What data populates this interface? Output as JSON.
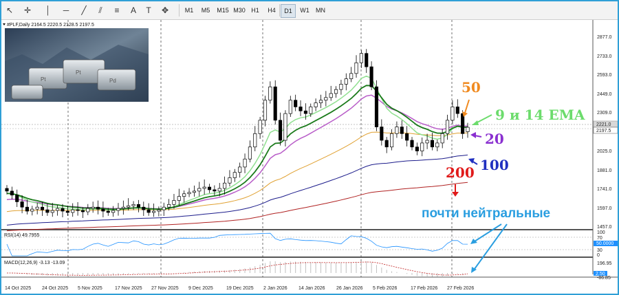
{
  "toolbar": {
    "timeframes": [
      "M1",
      "M5",
      "M15",
      "M30",
      "H1",
      "H4",
      "D1",
      "W1",
      "MN"
    ]
  },
  "header": {
    "symbol_line": "#PLF,Daily  2164.5 2220.5 2128.5 2197.5"
  },
  "price_axis": {
    "labels": [
      "2877.0",
      "2733.0",
      "2593.0",
      "2449.0",
      "2309.0",
      "2169.0",
      "2025.0",
      "1881.0",
      "1741.0",
      "1597.0",
      "1457.0"
    ],
    "current_price": "2197.5",
    "line_price": "2221.0"
  },
  "rsi": {
    "label": "RSI(14) 49.7955",
    "levels": [
      "100",
      "70",
      "30",
      "0"
    ],
    "current": "50.0000"
  },
  "macd": {
    "label": "MACD(12,26,9) -3.13 -13.09",
    "levels": [
      "196.95",
      "-86.85"
    ],
    "current": "2.50"
  },
  "time_axis": {
    "labels": [
      "14 Oct 2025",
      "24 Oct 2025",
      "5 Nov 2025",
      "17 Nov 2025",
      "27 Nov 2025",
      "9 Dec 2025",
      "19 Dec 2025",
      "2 Jan 2026",
      "14 Jan 2026",
      "26 Jan 2026",
      "5 Feb 2026",
      "17 Feb 2026",
      "27 Feb 2026"
    ]
  },
  "annotations": {
    "ema50": "50",
    "ema_fast": "9 и 14 EMA",
    "ema20": "20",
    "ema100": "100",
    "ema200": "200",
    "neutral": "почти нейтральные"
  },
  "chart_data": {
    "type": "candlestick",
    "symbol": "#PLF",
    "period": "Daily",
    "last_bar": {
      "open": 2164.5,
      "high": 2220.5,
      "low": 2128.5,
      "close": 2197.5
    },
    "ylim": [
      1400,
      2950
    ],
    "closes": [
      1720,
      1690,
      1640,
      1600,
      1570,
      1585,
      1600,
      1580,
      1560,
      1575,
      1590,
      1570,
      1560,
      1580,
      1575,
      1565,
      1590,
      1600,
      1585,
      1570,
      1560,
      1575,
      1590,
      1600,
      1610,
      1620,
      1600,
      1580,
      1560,
      1570,
      1580,
      1600,
      1620,
      1650,
      1680,
      1700,
      1710,
      1720,
      1740,
      1750,
      1730,
      1720,
      1740,
      1780,
      1820,
      1860,
      1900,
      1960,
      2050,
      2150,
      2250,
      2400,
      2500,
      2250,
      2100,
      2300,
      2400,
      2350,
      2320,
      2300,
      2350,
      2380,
      2400,
      2420,
      2450,
      2480,
      2520,
      2560,
      2600,
      2680,
      2750,
      2650,
      2500,
      2200,
      2100,
      2050,
      2150,
      2200,
      2150,
      2100,
      2050,
      2020,
      2080,
      2100,
      2050,
      2080,
      2150,
      2250,
      2350,
      2300,
      2150,
      2197.5
    ],
    "ema_series": [
      {
        "name": "9 и 14 EMA",
        "color": "#1a7a1a"
      },
      {
        "name": "20",
        "color": "#b85cc8"
      },
      {
        "name": "50",
        "color": "#e0a030"
      },
      {
        "name": "100",
        "color": "#1a1a8a"
      },
      {
        "name": "200",
        "color": "#b02020"
      }
    ],
    "rsi_value": 49.7955,
    "macd_main": -3.13,
    "macd_signal": -13.09
  }
}
